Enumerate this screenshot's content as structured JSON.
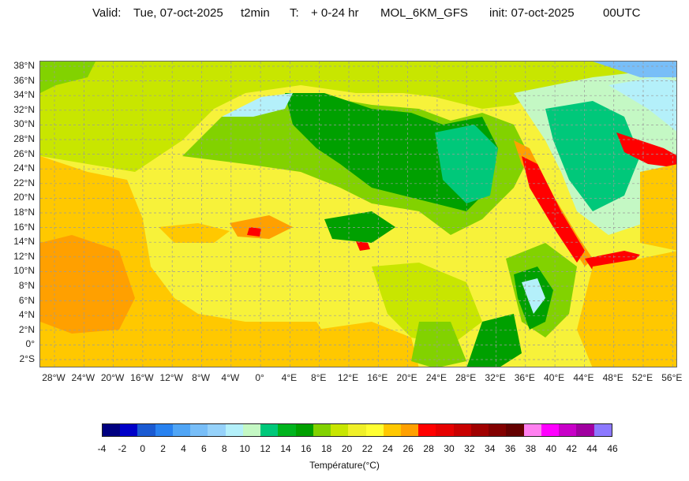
{
  "header": {
    "valid_label": "Valid:",
    "valid_date": "Tue, 07-oct-2025",
    "variable": "t2min",
    "t_label": "T:",
    "t_range": "+ 0-24 hr",
    "model": "MOL_6KM_GFS",
    "init": "init: 07-oct-2025",
    "init_time": "00UTC"
  },
  "map": {
    "lat_ticks": [
      "38°N",
      "36°N",
      "34°N",
      "32°N",
      "30°N",
      "28°N",
      "26°N",
      "24°N",
      "22°N",
      "20°N",
      "18°N",
      "16°N",
      "14°N",
      "12°N",
      "10°N",
      "8°N",
      "6°N",
      "4°N",
      "2°N",
      "0°",
      "2°S"
    ],
    "lon_ticks": [
      "28°W",
      "24°W",
      "20°W",
      "16°W",
      "12°W",
      "8°W",
      "4°W",
      "0°",
      "4°E",
      "8°E",
      "12°E",
      "16°E",
      "20°E",
      "24°E",
      "28°E",
      "32°E",
      "36°E",
      "40°E",
      "44°E",
      "48°E",
      "52°E",
      "56°E"
    ]
  },
  "colorbar": {
    "label": "Température(°C)",
    "tick_labels": [
      "-4",
      "-2",
      "0",
      "2",
      "4",
      "6",
      "8",
      "10",
      "12",
      "14",
      "16",
      "18",
      "20",
      "22",
      "24",
      "26",
      "28",
      "30",
      "32",
      "34",
      "36",
      "38",
      "40",
      "42",
      "44",
      "46"
    ],
    "colors": [
      "#000080",
      "#0000c8",
      "#1a5ad2",
      "#2882f0",
      "#50a5f5",
      "#78bef8",
      "#96d2fa",
      "#b4f0fa",
      "#c4f8c4",
      "#00c87a",
      "#00b41e",
      "#00a000",
      "#82d200",
      "#c8e600",
      "#f0f028",
      "#ffff32",
      "#ffc800",
      "#ffa000",
      "#ff0000",
      "#e60000",
      "#c80000",
      "#a00000",
      "#820000",
      "#640000",
      "#ff80f0",
      "#ff00ff",
      "#c800c8",
      "#a000a0",
      "#8c78ff"
    ]
  }
}
